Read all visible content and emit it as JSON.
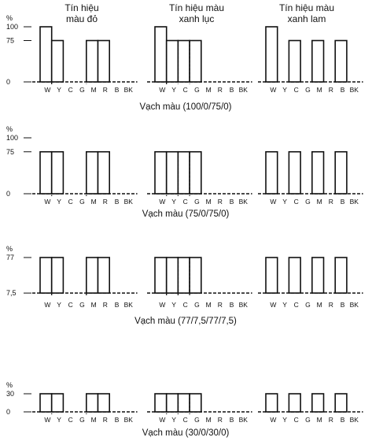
{
  "headers": [
    {
      "line1": "Tín hiệu",
      "line2": "màu đỏ"
    },
    {
      "line1": "Tín hiệu màu",
      "line2": "xanh lục"
    },
    {
      "line1": "Tín hiệu màu",
      "line2": "xanh lam"
    }
  ],
  "percent_label": "%",
  "categories": [
    "W",
    "Y",
    "C",
    "G",
    "M",
    "R",
    "B",
    "BK"
  ],
  "rows": [
    {
      "caption": "Vạch màu (100/0/75/0)",
      "ticks": [
        "100",
        "75",
        "0"
      ],
      "tick_values": [
        100,
        75,
        0
      ],
      "channels": [
        {
          "values": [
            100,
            75,
            0,
            0,
            75,
            75,
            0,
            0
          ],
          "dashed": [
            1,
            4
          ]
        },
        {
          "values": [
            100,
            75,
            75,
            75,
            0,
            0,
            0,
            0
          ],
          "dashed": [
            1,
            2,
            3
          ]
        },
        {
          "values": [
            100,
            0,
            75,
            0,
            75,
            0,
            75,
            0
          ],
          "dashed": []
        }
      ]
    },
    {
      "caption": "Vạch màu (75/0/75/0)",
      "ticks": [
        "100",
        "75",
        "0"
      ],
      "tick_values": [
        100,
        75,
        0
      ],
      "channels": [
        {
          "values": [
            75,
            75,
            0,
            0,
            75,
            75,
            0,
            0
          ],
          "dashed": [
            1,
            4
          ]
        },
        {
          "values": [
            75,
            75,
            75,
            75,
            0,
            0,
            0,
            0
          ],
          "dashed": [
            1,
            2,
            3
          ]
        },
        {
          "values": [
            75,
            0,
            75,
            0,
            75,
            0,
            75,
            0
          ],
          "dashed": []
        }
      ]
    },
    {
      "caption": "Vạch màu (77/7,5/77/7,5)",
      "ticks": [
        "77",
        "7,5"
      ],
      "tick_values": [
        77,
        7.5
      ],
      "channels": [
        {
          "values": [
            77,
            77,
            7.5,
            7.5,
            77,
            77,
            7.5,
            7.5
          ],
          "dashed": [
            1,
            4
          ]
        },
        {
          "values": [
            77,
            77,
            77,
            77,
            7.5,
            7.5,
            7.5,
            7.5
          ],
          "dashed": [
            1,
            2,
            3
          ]
        },
        {
          "values": [
            77,
            7.5,
            77,
            7.5,
            77,
            7.5,
            77,
            7.5
          ],
          "dashed": []
        }
      ]
    },
    {
      "caption": "Vạch màu (30/0/30/0)",
      "ticks": [
        "30",
        "0"
      ],
      "tick_values": [
        30,
        0
      ],
      "channels": [
        {
          "values": [
            30,
            30,
            0,
            0,
            30,
            30,
            0,
            0
          ],
          "dashed": [
            1,
            4
          ]
        },
        {
          "values": [
            30,
            30,
            30,
            30,
            0,
            0,
            0,
            0
          ],
          "dashed": [
            1,
            2,
            3
          ]
        },
        {
          "values": [
            30,
            0,
            30,
            0,
            30,
            0,
            30,
            0
          ],
          "dashed": []
        }
      ]
    }
  ]
}
